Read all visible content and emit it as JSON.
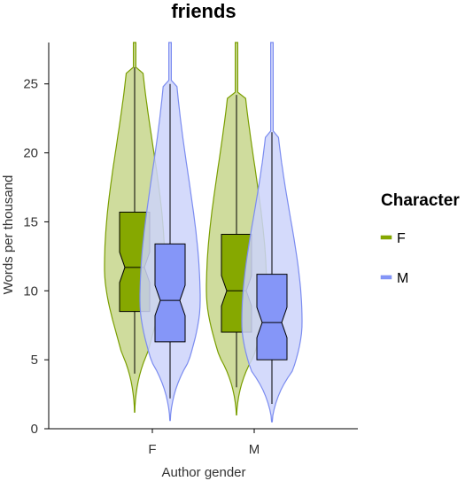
{
  "chart_data": {
    "type": "violin",
    "title": "friends",
    "xlabel": "Author gender",
    "ylabel": "Words per thousand",
    "categories": [
      "F",
      "M"
    ],
    "ylim": [
      0,
      28
    ],
    "yticks": [
      0,
      5,
      10,
      15,
      20,
      25
    ],
    "legend": {
      "title": "Character",
      "position": "right"
    },
    "series": [
      {
        "name": "F",
        "color": "#7a9e00",
        "fill": "#c7d68c",
        "box_fill": "#86a800",
        "stats": [
          {
            "category": "F",
            "whisker_low": 4.0,
            "q1": 8.5,
            "median": 11.7,
            "q3": 15.7,
            "whisker_high": 26.2,
            "min": 1.2,
            "max": 28
          },
          {
            "category": "M",
            "whisker_low": 3.0,
            "q1": 7.0,
            "median": 10.0,
            "q3": 14.1,
            "whisker_high": 24.2,
            "min": 1.0,
            "max": 28
          }
        ]
      },
      {
        "name": "M",
        "color": "#7b8cf0",
        "fill": "#cdd4fa",
        "box_fill": "#8596f8",
        "stats": [
          {
            "category": "F",
            "whisker_low": 2.2,
            "q1": 6.3,
            "median": 9.3,
            "q3": 13.4,
            "whisker_high": 25.0,
            "min": 0.6,
            "max": 28
          },
          {
            "category": "M",
            "whisker_low": 1.8,
            "q1": 5.0,
            "median": 7.7,
            "q3": 11.2,
            "whisker_high": 21.5,
            "min": 0.5,
            "max": 28
          }
        ]
      }
    ],
    "grid": false
  }
}
